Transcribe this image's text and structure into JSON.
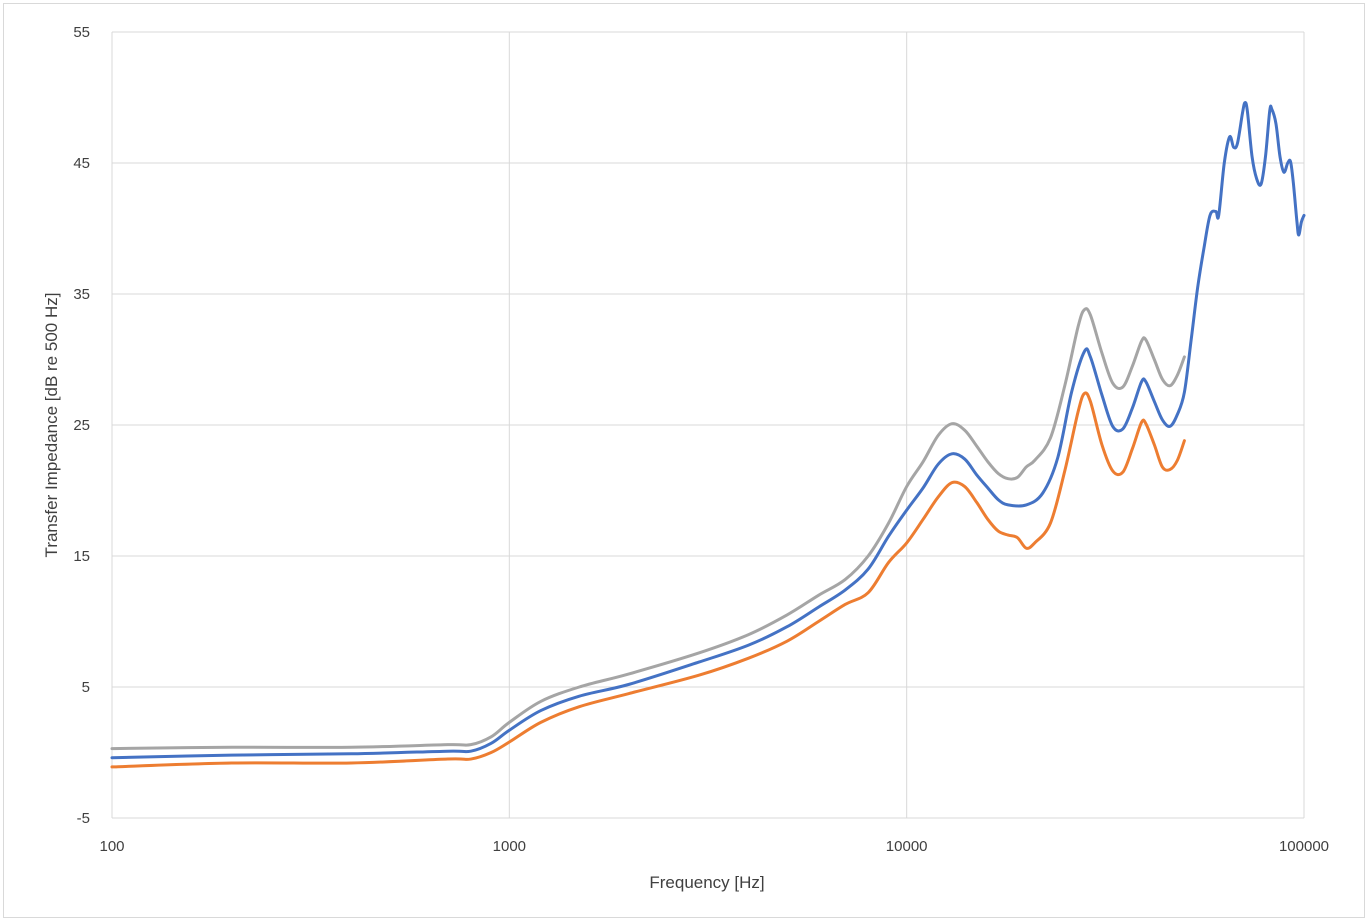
{
  "chart_data": {
    "type": "line",
    "title": "",
    "xlabel": "Frequency [Hz]",
    "ylabel": "Transfer Impedance [dB re 500 Hz]",
    "x_scale": "log",
    "xlim": [
      100,
      100000
    ],
    "ylim": [
      -5,
      55
    ],
    "x_ticks": [
      100,
      1000,
      10000,
      100000
    ],
    "x_tick_labels": [
      "100",
      "1000",
      "10000",
      "100000"
    ],
    "y_ticks": [
      -5,
      5,
      15,
      25,
      35,
      45,
      55
    ],
    "y_tick_labels": [
      "-5",
      "5",
      "15",
      "25",
      "35",
      "45",
      "55"
    ],
    "grid": true,
    "legend": "none",
    "series": [
      {
        "color": "#a5a5a5",
        "points": [
          [
            100,
            0.3
          ],
          [
            200,
            0.4
          ],
          [
            400,
            0.4
          ],
          [
            700,
            0.6
          ],
          [
            800,
            0.6
          ],
          [
            900,
            1.2
          ],
          [
            1000,
            2.3
          ],
          [
            1200,
            3.9
          ],
          [
            1500,
            5.0
          ],
          [
            2000,
            6.0
          ],
          [
            3000,
            7.6
          ],
          [
            4000,
            9.0
          ],
          [
            5000,
            10.5
          ],
          [
            6000,
            12.0
          ],
          [
            7000,
            13.2
          ],
          [
            8000,
            15.0
          ],
          [
            9000,
            17.5
          ],
          [
            10000,
            20.3
          ],
          [
            11000,
            22.2
          ],
          [
            12000,
            24.2
          ],
          [
            13000,
            25.1
          ],
          [
            14000,
            24.6
          ],
          [
            15000,
            23.4
          ],
          [
            16000,
            22.2
          ],
          [
            17000,
            21.3
          ],
          [
            18000,
            20.9
          ],
          [
            19000,
            21.0
          ],
          [
            20000,
            21.8
          ],
          [
            21000,
            22.3
          ],
          [
            23000,
            24.0
          ],
          [
            25000,
            28.0
          ],
          [
            27000,
            32.5
          ],
          [
            28000,
            33.8
          ],
          [
            29000,
            33.4
          ],
          [
            31000,
            30.5
          ],
          [
            33000,
            28.2
          ],
          [
            35000,
            27.9
          ],
          [
            37000,
            29.5
          ],
          [
            39000,
            31.4
          ],
          [
            40000,
            31.5
          ],
          [
            42000,
            30.0
          ],
          [
            44000,
            28.5
          ],
          [
            46000,
            28.0
          ],
          [
            48000,
            28.8
          ],
          [
            50000,
            30.2
          ]
        ]
      },
      {
        "color": "#4472c4",
        "points": [
          [
            100,
            -0.4
          ],
          [
            200,
            -0.2
          ],
          [
            400,
            -0.1
          ],
          [
            700,
            0.1
          ],
          [
            800,
            0.1
          ],
          [
            900,
            0.7
          ],
          [
            1000,
            1.7
          ],
          [
            1200,
            3.2
          ],
          [
            1500,
            4.3
          ],
          [
            2000,
            5.2
          ],
          [
            3000,
            6.9
          ],
          [
            4000,
            8.2
          ],
          [
            5000,
            9.6
          ],
          [
            6000,
            11.1
          ],
          [
            7000,
            12.4
          ],
          [
            8000,
            14.0
          ],
          [
            9000,
            16.5
          ],
          [
            10000,
            18.5
          ],
          [
            11000,
            20.2
          ],
          [
            12000,
            22.0
          ],
          [
            13000,
            22.8
          ],
          [
            14000,
            22.4
          ],
          [
            15000,
            21.2
          ],
          [
            16000,
            20.2
          ],
          [
            17000,
            19.3
          ],
          [
            18000,
            18.9
          ],
          [
            20000,
            18.9
          ],
          [
            22000,
            19.8
          ],
          [
            24000,
            22.5
          ],
          [
            26000,
            27.5
          ],
          [
            28000,
            30.6
          ],
          [
            29000,
            30.2
          ],
          [
            31000,
            27.3
          ],
          [
            33000,
            24.9
          ],
          [
            35000,
            24.7
          ],
          [
            37000,
            26.3
          ],
          [
            39000,
            28.3
          ],
          [
            40000,
            28.3
          ],
          [
            42000,
            26.8
          ],
          [
            44000,
            25.4
          ],
          [
            46000,
            24.9
          ],
          [
            48000,
            25.8
          ],
          [
            50000,
            27.5
          ],
          [
            52000,
            31.5
          ],
          [
            54000,
            35.5
          ],
          [
            56000,
            38.5
          ],
          [
            58000,
            41.0
          ],
          [
            60000,
            41.3
          ],
          [
            61000,
            41.0
          ],
          [
            63000,
            45.0
          ],
          [
            65000,
            47.0
          ],
          [
            66500,
            46.2
          ],
          [
            68000,
            46.5
          ],
          [
            70000,
            48.8
          ],
          [
            71000,
            49.6
          ],
          [
            72000,
            49.0
          ],
          [
            74000,
            45.5
          ],
          [
            76000,
            43.8
          ],
          [
            78000,
            43.4
          ],
          [
            80000,
            45.5
          ],
          [
            82000,
            49.0
          ],
          [
            83000,
            49.1
          ],
          [
            85000,
            48.0
          ],
          [
            87000,
            45.5
          ],
          [
            89000,
            44.3
          ],
          [
            91000,
            45.0
          ],
          [
            92500,
            45.1
          ],
          [
            94000,
            43.5
          ],
          [
            96000,
            40.5
          ],
          [
            97000,
            39.5
          ],
          [
            98500,
            40.5
          ],
          [
            100000,
            41.0
          ]
        ]
      },
      {
        "color": "#ed7d31",
        "points": [
          [
            100,
            -1.1
          ],
          [
            200,
            -0.8
          ],
          [
            400,
            -0.8
          ],
          [
            700,
            -0.5
          ],
          [
            800,
            -0.5
          ],
          [
            900,
            0.0
          ],
          [
            1000,
            0.8
          ],
          [
            1200,
            2.3
          ],
          [
            1500,
            3.5
          ],
          [
            2000,
            4.5
          ],
          [
            3000,
            5.9
          ],
          [
            4000,
            7.2
          ],
          [
            5000,
            8.5
          ],
          [
            6000,
            10.0
          ],
          [
            7000,
            11.3
          ],
          [
            8000,
            12.2
          ],
          [
            9000,
            14.5
          ],
          [
            10000,
            16.0
          ],
          [
            11000,
            17.8
          ],
          [
            12000,
            19.5
          ],
          [
            13000,
            20.6
          ],
          [
            14000,
            20.3
          ],
          [
            15000,
            19.1
          ],
          [
            16000,
            17.8
          ],
          [
            17000,
            16.9
          ],
          [
            18000,
            16.6
          ],
          [
            19000,
            16.4
          ],
          [
            20000,
            15.6
          ],
          [
            21000,
            16.0
          ],
          [
            23000,
            17.5
          ],
          [
            25000,
            21.5
          ],
          [
            27000,
            26.0
          ],
          [
            28000,
            27.4
          ],
          [
            29000,
            26.8
          ],
          [
            31000,
            23.5
          ],
          [
            33000,
            21.5
          ],
          [
            35000,
            21.4
          ],
          [
            37000,
            23.2
          ],
          [
            39000,
            25.2
          ],
          [
            40000,
            25.1
          ],
          [
            42000,
            23.5
          ],
          [
            44000,
            21.8
          ],
          [
            46000,
            21.6
          ],
          [
            48000,
            22.3
          ],
          [
            50000,
            23.8
          ]
        ]
      }
    ]
  }
}
